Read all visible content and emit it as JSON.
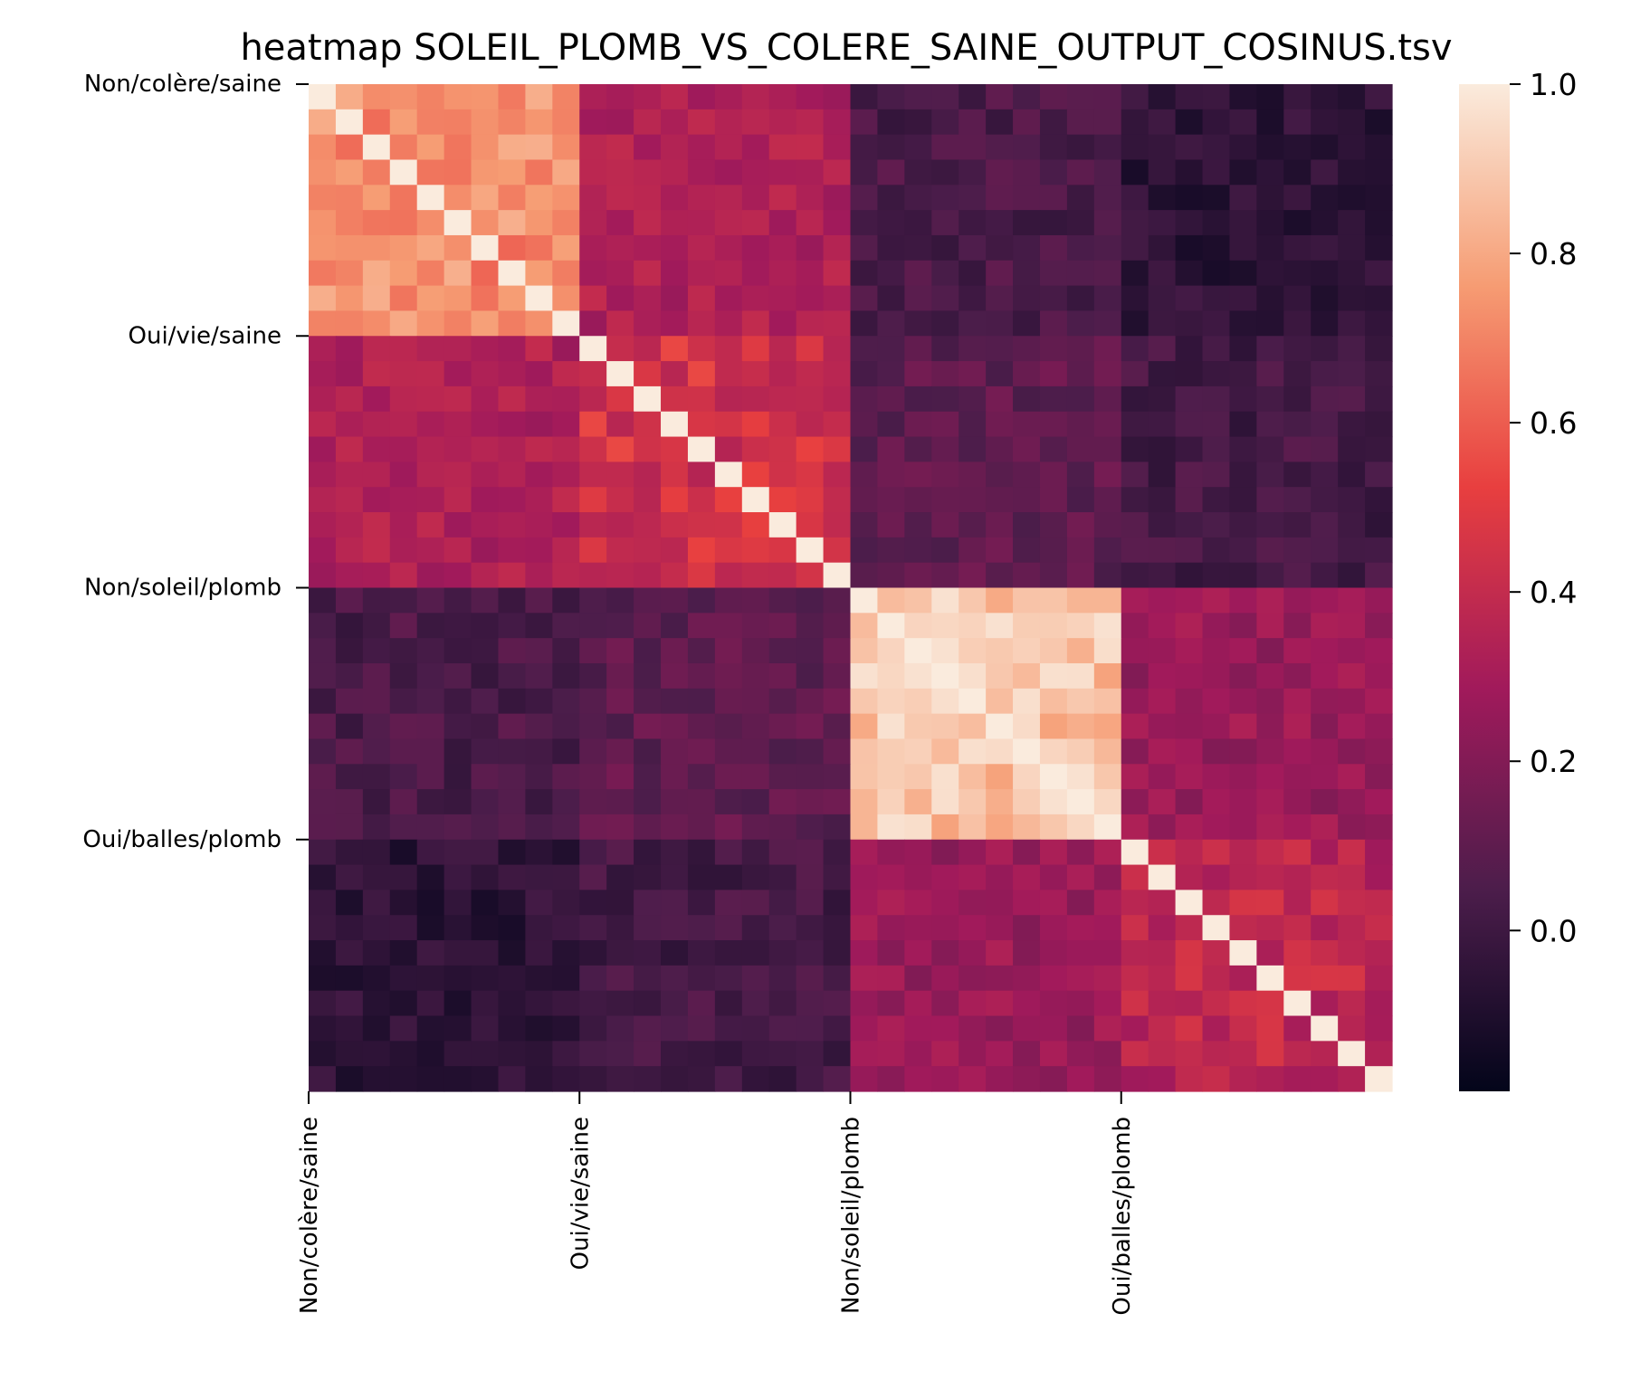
{
  "chart_data": {
    "type": "heatmap",
    "title": "heatmap SOLEIL_PLOMB_VS_COLERE_SAINE_OUTPUT_COSINUS.tsv",
    "xlabel": "",
    "ylabel": "",
    "n": 40,
    "groups": [
      {
        "label": "Non/colère/saine",
        "start": 0,
        "size": 10
      },
      {
        "label": "Oui/vie/saine",
        "start": 10,
        "size": 10
      },
      {
        "label": "Non/soleil/plomb",
        "start": 20,
        "size": 10
      },
      {
        "label": "Oui/balles/plomb",
        "start": 30,
        "size": 10
      }
    ],
    "within_block_mean": [
      0.72,
      0.45,
      0.88,
      0.38
    ],
    "between_block_mean": [
      [
        null,
        0.33,
        0.04,
        -0.05
      ],
      [
        0.33,
        null,
        0.1,
        0.02
      ],
      [
        0.04,
        0.1,
        null,
        0.26
      ],
      [
        -0.05,
        0.02,
        0.26,
        null
      ]
    ],
    "diagonal": 1.0,
    "colorbar": {
      "min": -0.19,
      "max": 1.0,
      "ticks": [
        0.0,
        0.2,
        0.4,
        0.6,
        0.8,
        1.0
      ],
      "tick_labels": [
        "0.0",
        "0.2",
        "0.4",
        "0.6",
        "0.8",
        "1.0"
      ],
      "colormap": "rocket",
      "colors": [
        "#03051a",
        "#4c1d4b",
        "#a11a5b",
        "#e83f3f",
        "#f69c73",
        "#faebdd"
      ]
    }
  }
}
